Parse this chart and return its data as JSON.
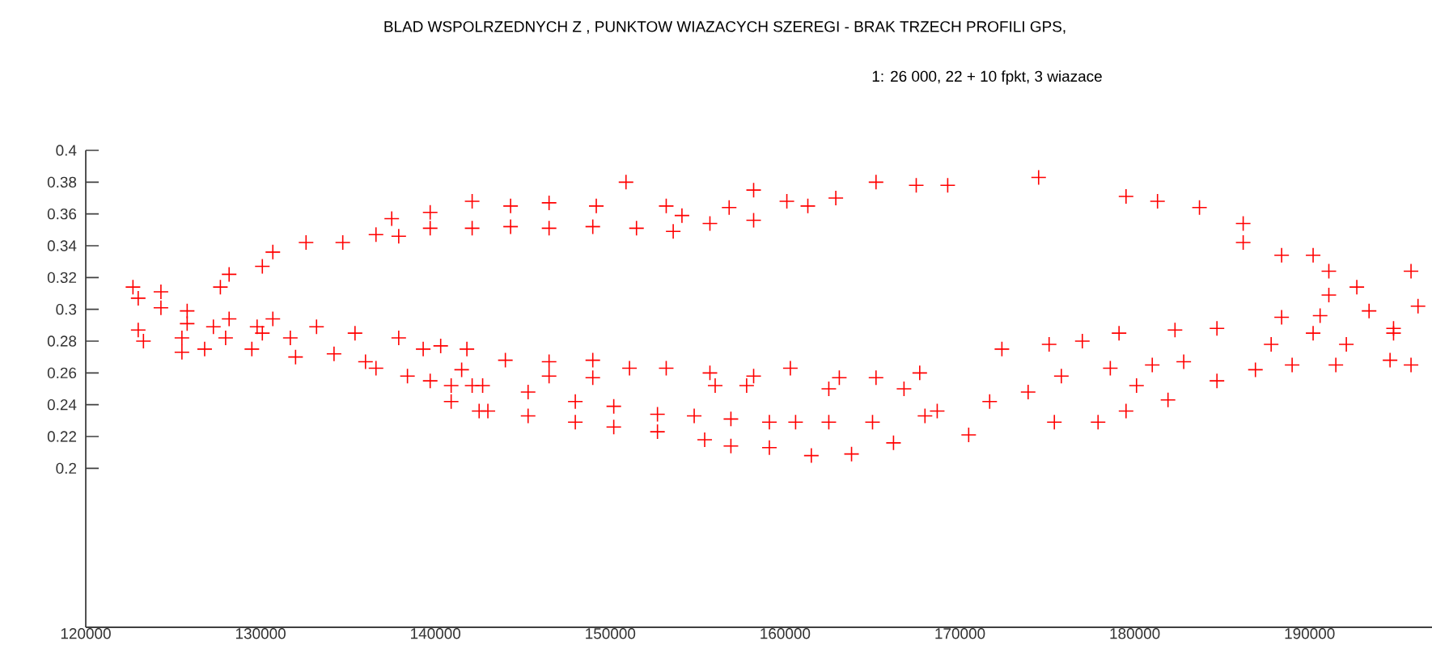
{
  "chart_data": {
    "type": "scatter",
    "title": "BLAD  WSPOLRZEDNYCH  Z ,  PUNKTOW  WIAZACYCH  SZEREGI - BRAK  TRZECH  PROFILI  GPS,",
    "subtitle": "1: 26 000, 22 + 10 fpkt, 3 wiazace",
    "xlim": [
      120000,
      197000
    ],
    "ylim": [
      0.1,
      0.4
    ],
    "xticks": [
      120000,
      130000,
      140000,
      150000,
      160000,
      170000,
      180000,
      190000
    ],
    "yticks": [
      0.2,
      0.22,
      0.24,
      0.26,
      0.28,
      0.3,
      0.32,
      0.34,
      0.36,
      0.38,
      0.4
    ],
    "marker": "cross",
    "grid": false,
    "series": [
      {
        "color": "#ff0000",
        "x": [
          127700,
          128200,
          130100,
          130700,
          132600,
          134700,
          136600,
          137500,
          137900,
          139700,
          139700,
          142100,
          142100,
          144300,
          144300,
          146500,
          146500,
          149200,
          149000,
          150900,
          151500,
          153200,
          153600,
          154100,
          155700,
          156800,
          158200,
          158200,
          160100,
          161300,
          162900,
          165200,
          167500,
          169300,
          174500,
          179500,
          181300,
          183700,
          186200,
          186200,
          188400,
          190200,
          191100,
          191100,
          192700,
          195800,
          196200,
          122700,
          123000,
          124300,
          124300,
          125800,
          125800,
          127300,
          128200,
          129800,
          130700,
          123000,
          123300,
          125500,
          125500,
          126800,
          128000,
          129500,
          130100,
          131700,
          132000,
          133200,
          134200,
          135400,
          136000,
          136600,
          137900,
          138400,
          139300,
          139700,
          140300,
          140900,
          141500,
          142100,
          142500,
          141800,
          144000,
          146500,
          149000,
          151100,
          153200,
          155700,
          158200,
          160300,
          163100,
          165200,
          167700,
          146500,
          149000,
          156000,
          157800,
          162500,
          166800,
          140900,
          142700,
          145300,
          143000,
          145300,
          148000,
          148000,
          150200,
          150200,
          152700,
          152700,
          154800,
          155400,
          156900,
          156900,
          159100,
          159100,
          160600,
          161500,
          163800,
          162500,
          165000,
          166200,
          168000,
          168700,
          170500,
          172400,
          175100,
          177000,
          179100,
          182300,
          184700,
          188400,
          190600,
          193400,
          194800,
          171700,
          173900,
          175800,
          178600,
          180100,
          181000,
          182800,
          184700,
          186900,
          189000,
          191500,
          194600,
          195800,
          175400,
          177900,
          179500,
          181900,
          187800,
          190200,
          192100,
          194800
        ],
        "values": [
          0.314,
          0.322,
          0.327,
          0.336,
          0.342,
          0.342,
          0.347,
          0.357,
          0.346,
          0.361,
          0.351,
          0.368,
          0.351,
          0.365,
          0.352,
          0.367,
          0.351,
          0.365,
          0.352,
          0.38,
          0.351,
          0.365,
          0.349,
          0.359,
          0.354,
          0.364,
          0.375,
          0.356,
          0.368,
          0.365,
          0.37,
          0.38,
          0.378,
          0.378,
          0.383,
          0.371,
          0.368,
          0.364,
          0.354,
          0.342,
          0.334,
          0.334,
          0.324,
          0.309,
          0.314,
          0.324,
          0.302,
          0.314,
          0.307,
          0.311,
          0.301,
          0.299,
          0.291,
          0.289,
          0.294,
          0.289,
          0.294,
          0.287,
          0.28,
          0.282,
          0.273,
          0.275,
          0.282,
          0.275,
          0.285,
          0.282,
          0.27,
          0.289,
          0.272,
          0.285,
          0.267,
          0.263,
          0.282,
          0.258,
          0.275,
          0.255,
          0.277,
          0.242,
          0.262,
          0.252,
          0.236,
          0.275,
          0.268,
          0.267,
          0.268,
          0.263,
          0.263,
          0.26,
          0.258,
          0.263,
          0.257,
          0.257,
          0.26,
          0.258,
          0.257,
          0.252,
          0.252,
          0.25,
          0.25,
          0.252,
          0.252,
          0.248,
          0.236,
          0.233,
          0.242,
          0.229,
          0.239,
          0.226,
          0.234,
          0.223,
          0.233,
          0.218,
          0.231,
          0.214,
          0.229,
          0.213,
          0.229,
          0.208,
          0.209,
          0.229,
          0.229,
          0.216,
          0.233,
          0.236,
          0.221,
          0.275,
          0.278,
          0.28,
          0.285,
          0.287,
          0.288,
          0.295,
          0.296,
          0.299,
          0.288,
          0.242,
          0.248,
          0.258,
          0.263,
          0.252,
          0.265,
          0.267,
          0.255,
          0.262,
          0.265,
          0.265,
          0.268,
          0.265,
          0.229,
          0.229,
          0.236,
          0.243,
          0.278,
          0.285,
          0.278,
          0.285
        ]
      }
    ]
  }
}
